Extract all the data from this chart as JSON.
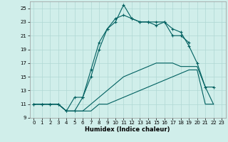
{
  "title": "",
  "xlabel": "Humidex (Indice chaleur)",
  "xlim": [
    -0.5,
    23.5
  ],
  "ylim": [
    9,
    26
  ],
  "yticks": [
    9,
    11,
    13,
    15,
    17,
    19,
    21,
    23,
    25
  ],
  "xticks": [
    0,
    1,
    2,
    3,
    4,
    5,
    6,
    7,
    8,
    9,
    10,
    11,
    12,
    13,
    14,
    15,
    16,
    17,
    18,
    19,
    20,
    21,
    22,
    23
  ],
  "background_color": "#d0eeea",
  "grid_color": "#b0d8d4",
  "line_color": "#006060",
  "series": [
    {
      "x": [
        0,
        1,
        2,
        3,
        4,
        5,
        6,
        7,
        8,
        9,
        10,
        11,
        12,
        13,
        14,
        15,
        16,
        17,
        18,
        19
      ],
      "y": [
        11,
        11,
        11,
        11,
        10,
        12,
        12,
        16,
        20,
        22,
        23,
        25.5,
        23.5,
        23,
        23,
        22.5,
        23,
        21,
        21,
        20
      ],
      "marker": true,
      "linestyle": "-"
    },
    {
      "x": [
        0,
        1,
        2,
        3,
        4,
        5,
        6,
        7,
        8,
        9,
        10,
        11,
        12,
        13,
        14,
        15,
        16,
        17,
        18,
        19,
        20,
        21,
        22
      ],
      "y": [
        11,
        11,
        11,
        11,
        10,
        10,
        12,
        15,
        19,
        22,
        23.5,
        24,
        23.5,
        23,
        23,
        23,
        23,
        22,
        21.5,
        19.5,
        17,
        13.5,
        13.5
      ],
      "marker": true,
      "linestyle": "-"
    },
    {
      "x": [
        0,
        1,
        2,
        3,
        4,
        5,
        6,
        7,
        8,
        9,
        10,
        11,
        12,
        13,
        14,
        15,
        16,
        17,
        18,
        19,
        20,
        21,
        22
      ],
      "y": [
        11,
        11,
        11,
        11,
        10,
        10,
        10,
        11,
        12,
        13,
        14,
        15,
        15.5,
        16,
        16.5,
        17,
        17,
        17,
        16.5,
        16.5,
        16.5,
        13.5,
        11
      ],
      "marker": false,
      "linestyle": "-"
    },
    {
      "x": [
        0,
        1,
        2,
        3,
        4,
        5,
        6,
        7,
        8,
        9,
        10,
        11,
        12,
        13,
        14,
        15,
        16,
        17,
        18,
        19,
        20,
        21,
        22
      ],
      "y": [
        11,
        11,
        11,
        11,
        10,
        10,
        10,
        10,
        11,
        11,
        11.5,
        12,
        12.5,
        13,
        13.5,
        14,
        14.5,
        15,
        15.5,
        16,
        16,
        11,
        11
      ],
      "marker": false,
      "linestyle": "-"
    }
  ]
}
